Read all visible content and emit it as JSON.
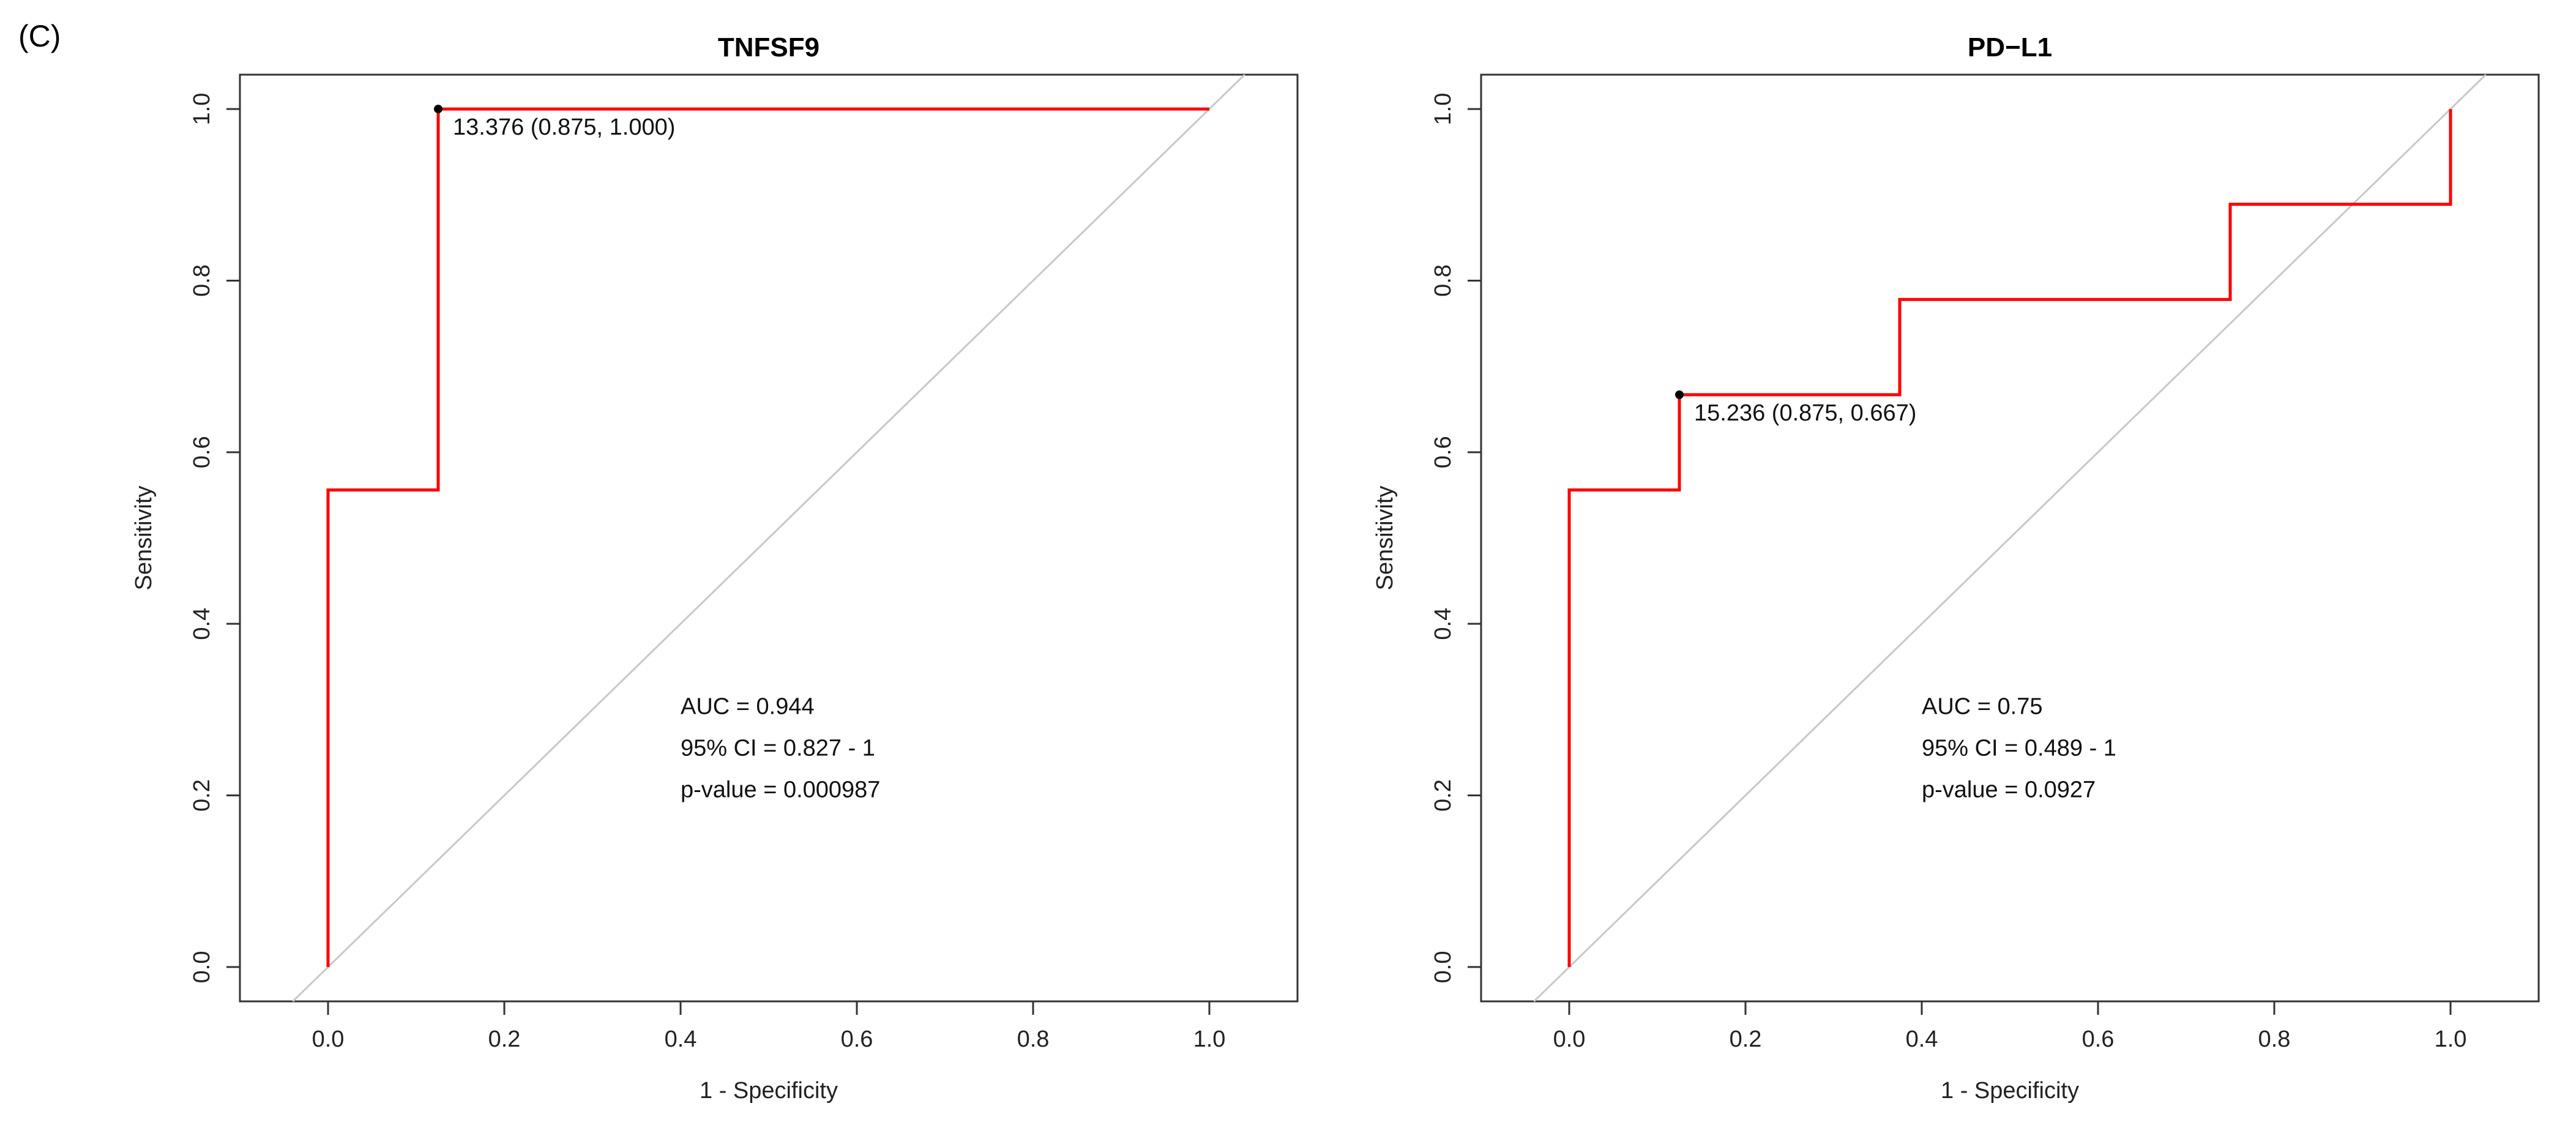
{
  "figure_label": "(C)",
  "chart_data": [
    {
      "type": "line",
      "title": "TNFSF9",
      "xlabel": "1 - Specificity",
      "ylabel": "Sensitivity",
      "xlim": [
        -0.1,
        1.1
      ],
      "ylim": [
        -0.04,
        1.04
      ],
      "xticks": [
        "0.0",
        "0.2",
        "0.4",
        "0.6",
        "0.8",
        "1.0"
      ],
      "yticks": [
        "0.0",
        "0.2",
        "0.4",
        "0.6",
        "0.8",
        "1.0"
      ],
      "grid": false,
      "series": [
        {
          "color": "#ff0000",
          "points": [
            [
              0.0,
              0.0
            ],
            [
              0.0,
              0.556
            ],
            [
              0.125,
              0.556
            ],
            [
              0.125,
              1.0
            ],
            [
              1.0,
              1.0
            ]
          ]
        }
      ],
      "diagonal": {
        "color": "#c8c8c8",
        "from": [
          -0.04,
          -0.04
        ],
        "to": [
          1.04,
          1.04
        ]
      },
      "cutoff": {
        "x": 0.125,
        "y": 1.0,
        "label": "13.376 (0.875, 1.000)"
      },
      "stats": {
        "auc": "AUC = 0.944",
        "ci": "95% CI = 0.827 - 1",
        "p": "p-value = 0.000987"
      },
      "stats_anchor": {
        "x": 0.4,
        "y": 0.295
      }
    },
    {
      "type": "line",
      "title": "PD−L1",
      "xlabel": "1 - Specificity",
      "ylabel": "Sensitivity",
      "xlim": [
        -0.1,
        1.1
      ],
      "ylim": [
        -0.04,
        1.04
      ],
      "xticks": [
        "0.0",
        "0.2",
        "0.4",
        "0.6",
        "0.8",
        "1.0"
      ],
      "yticks": [
        "0.0",
        "0.2",
        "0.4",
        "0.6",
        "0.8",
        "1.0"
      ],
      "grid": false,
      "series": [
        {
          "color": "#ff0000",
          "points": [
            [
              0.0,
              0.0
            ],
            [
              0.0,
              0.556
            ],
            [
              0.125,
              0.556
            ],
            [
              0.125,
              0.667
            ],
            [
              0.375,
              0.667
            ],
            [
              0.375,
              0.778
            ],
            [
              0.75,
              0.778
            ],
            [
              0.75,
              0.889
            ],
            [
              1.0,
              0.889
            ],
            [
              1.0,
              1.0
            ]
          ]
        }
      ],
      "diagonal": {
        "color": "#c8c8c8",
        "from": [
          -0.04,
          -0.04
        ],
        "to": [
          1.04,
          1.04
        ]
      },
      "cutoff": {
        "x": 0.125,
        "y": 0.667,
        "label": "15.236 (0.875, 0.667)"
      },
      "stats": {
        "auc": "AUC = 0.75",
        "ci": "95% CI = 0.489 - 1",
        "p": "p-value = 0.0927"
      },
      "stats_anchor": {
        "x": 0.4,
        "y": 0.295
      }
    }
  ]
}
